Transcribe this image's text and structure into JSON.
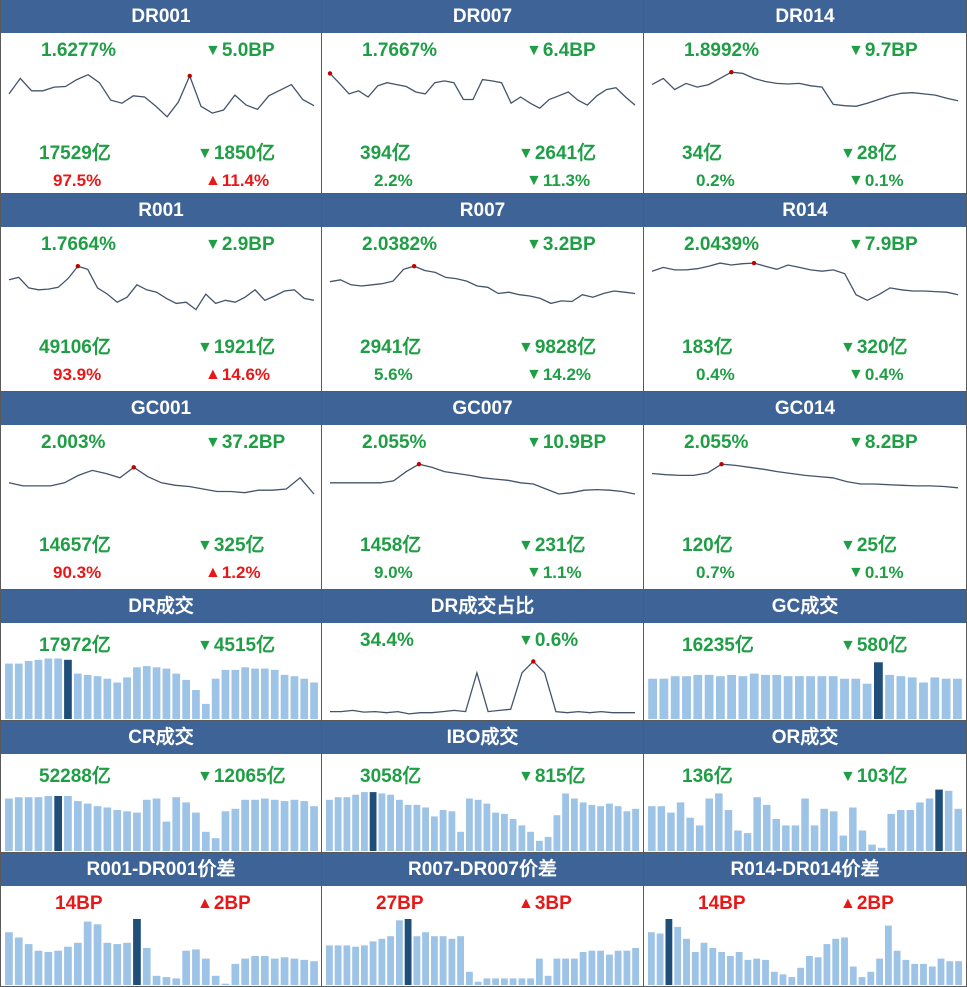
{
  "colors": {
    "header_bg": "#3e6396",
    "green": "#1f9e45",
    "red": "#e81818",
    "line": "#44546a",
    "bar": "#9dc3e6",
    "bar_highlight": "#1f4e79",
    "marker": "#c00000"
  },
  "panels": [
    {
      "id": "dr001",
      "title": "DR001",
      "kind": "line",
      "rate": "1.6277%",
      "rate_chg": "5.0BP",
      "rate_dir": "down",
      "vol": "17529亿",
      "vol_chg": "1850亿",
      "vol_dir": "down",
      "share": "97.5%",
      "share_chg": "11.4%",
      "share_dir": "up",
      "share_color": "red",
      "chart_data": {
        "type": "line",
        "values": [
          55,
          80,
          60,
          60,
          66,
          67,
          78,
          86,
          73,
          45,
          40,
          52,
          50,
          35,
          18,
          42,
          84,
          35,
          24,
          29,
          53,
          37,
          30,
          52,
          61,
          70,
          46,
          36
        ],
        "ylim": [
          0,
          100
        ],
        "peak_index": 16
      }
    },
    {
      "id": "dr007",
      "title": "DR007",
      "kind": "line",
      "rate": "1.7667%",
      "rate_chg": "6.4BP",
      "rate_dir": "down",
      "vol": "394亿",
      "vol_chg": "2641亿",
      "vol_dir": "down",
      "share": "2.2%",
      "share_chg": "11.3%",
      "share_dir": "down",
      "share_color": "green",
      "chart_data": {
        "type": "line",
        "values": [
          88,
          72,
          55,
          60,
          50,
          68,
          73,
          70,
          67,
          58,
          55,
          73,
          76,
          73,
          46,
          46,
          78,
          76,
          73,
          40,
          50,
          40,
          32,
          46,
          52,
          58,
          45,
          37,
          52,
          62,
          65,
          50,
          37
        ],
        "ylim": [
          0,
          100
        ],
        "peak_index": 0
      }
    },
    {
      "id": "dr014",
      "title": "DR014",
      "kind": "line",
      "rate": "1.8992%",
      "rate_chg": "9.7BP",
      "rate_dir": "down",
      "vol": "34亿",
      "vol_chg": "28亿",
      "vol_dir": "down",
      "share": "0.2%",
      "share_chg": "0.1%",
      "share_dir": "down",
      "share_color": "green",
      "chart_data": {
        "type": "line",
        "values": [
          70,
          80,
          62,
          72,
          66,
          70,
          80,
          90,
          88,
          80,
          75,
          72,
          71,
          72,
          68,
          66,
          38,
          36,
          35,
          40,
          46,
          52,
          56,
          57,
          55,
          53,
          48,
          44
        ],
        "ylim": [
          0,
          100
        ],
        "peak_index": 7
      }
    },
    {
      "id": "r001",
      "title": "R001",
      "kind": "line",
      "rate": "1.7664%",
      "rate_chg": "2.9BP",
      "rate_dir": "down",
      "vol": "49106亿",
      "vol_chg": "1921亿",
      "vol_dir": "down",
      "share": "93.9%",
      "share_chg": "14.6%",
      "share_dir": "up",
      "share_color": "red",
      "chart_data": {
        "type": "line",
        "values": [
          68,
          72,
          55,
          52,
          53,
          56,
          70,
          90,
          85,
          55,
          45,
          32,
          40,
          60,
          52,
          48,
          38,
          30,
          32,
          20,
          45,
          30,
          35,
          32,
          40,
          52,
          35,
          42,
          50,
          52,
          38,
          35
        ],
        "ylim": [
          0,
          100
        ],
        "peak_index": 7
      }
    },
    {
      "id": "r007",
      "title": "R007",
      "kind": "line",
      "rate": "2.0382%",
      "rate_chg": "3.2BP",
      "rate_dir": "down",
      "vol": "2941亿",
      "vol_chg": "9828亿",
      "vol_dir": "down",
      "share": "5.6%",
      "share_chg": "14.2%",
      "share_dir": "down",
      "share_color": "green",
      "chart_data": {
        "type": "line",
        "values": [
          65,
          68,
          60,
          58,
          60,
          62,
          66,
          85,
          90,
          83,
          80,
          72,
          70,
          66,
          58,
          56,
          46,
          48,
          44,
          42,
          38,
          30,
          34,
          33,
          44,
          40,
          46,
          50,
          48,
          46
        ],
        "ylim": [
          0,
          100
        ],
        "peak_index": 8
      }
    },
    {
      "id": "r014",
      "title": "R014",
      "kind": "line",
      "rate": "2.0439%",
      "rate_chg": "7.9BP",
      "rate_dir": "down",
      "vol": "183亿",
      "vol_chg": "320亿",
      "vol_dir": "down",
      "share": "0.4%",
      "share_chg": "0.4%",
      "share_dir": "down",
      "share_color": "green",
      "chart_data": {
        "type": "line",
        "values": [
          82,
          88,
          84,
          84,
          86,
          90,
          95,
          92,
          94,
          95,
          90,
          85,
          92,
          88,
          84,
          82,
          84,
          78,
          44,
          35,
          44,
          55,
          52,
          50,
          50,
          49,
          48,
          44
        ],
        "ylim": [
          0,
          100
        ],
        "peak_index": 9
      }
    },
    {
      "id": "gc001",
      "title": "GC001",
      "kind": "line",
      "rate": "2.003%",
      "rate_chg": "37.2BP",
      "rate_dir": "down",
      "vol": "14657亿",
      "vol_chg": "325亿",
      "vol_dir": "down",
      "share": "90.3%",
      "share_chg": "1.2%",
      "share_dir": "up",
      "share_color": "red",
      "chart_data": {
        "type": "line",
        "values": [
          60,
          55,
          55,
          55,
          60,
          72,
          80,
          75,
          68,
          85,
          70,
          60,
          56,
          54,
          50,
          46,
          46,
          44,
          48,
          48,
          50,
          68,
          42
        ],
        "ylim": [
          0,
          100
        ],
        "peak_index": 9
      }
    },
    {
      "id": "gc007",
      "title": "GC007",
      "kind": "line",
      "rate": "2.055%",
      "rate_chg": "10.9BP",
      "rate_dir": "down",
      "vol": "1458亿",
      "vol_chg": "231亿",
      "vol_dir": "down",
      "share": "9.0%",
      "share_chg": "1.1%",
      "share_dir": "down",
      "share_color": "green",
      "chart_data": {
        "type": "line",
        "values": [
          60,
          60,
          60,
          60,
          60,
          63,
          78,
          90,
          85,
          78,
          75,
          72,
          68,
          66,
          64,
          60,
          58,
          50,
          42,
          44,
          48,
          49,
          48,
          46,
          42
        ],
        "ylim": [
          0,
          100
        ],
        "peak_index": 7
      }
    },
    {
      "id": "gc014",
      "title": "GC014",
      "kind": "line",
      "rate": "2.055%",
      "rate_chg": "8.2BP",
      "rate_dir": "down",
      "vol": "120亿",
      "vol_chg": "25亿",
      "vol_dir": "down",
      "share": "0.7%",
      "share_chg": "0.1%",
      "share_dir": "down",
      "share_color": "green",
      "chart_data": {
        "type": "line",
        "values": [
          75,
          73,
          72,
          72,
          76,
          90,
          88,
          85,
          82,
          78,
          75,
          72,
          70,
          68,
          62,
          58,
          58,
          57,
          56,
          55,
          55,
          54,
          52
        ],
        "ylim": [
          0,
          100
        ],
        "peak_index": 5
      }
    },
    {
      "id": "dr_vol",
      "title": "DR成交",
      "kind": "bar",
      "rate": "17972亿",
      "rate_chg": "4515亿",
      "rate_dir": "down",
      "chart_data": {
        "type": "bar",
        "values": [
          88,
          88,
          92,
          94,
          96,
          96,
          94,
          72,
          70,
          68,
          64,
          58,
          66,
          82,
          84,
          82,
          80,
          72,
          62,
          46,
          24,
          64,
          78,
          78,
          82,
          80,
          80,
          78,
          70,
          68,
          64,
          58
        ],
        "ylim": [
          0,
          100
        ],
        "highlight_index": 6
      }
    },
    {
      "id": "dr_share",
      "title": "DR成交占比",
      "kind": "line",
      "rate": "34.4%",
      "rate_chg": "0.6%",
      "rate_dir": "down",
      "chart_data": {
        "type": "line",
        "values": [
          6,
          6,
          8,
          5,
          6,
          4,
          6,
          2,
          4,
          4,
          6,
          8,
          6,
          74,
          6,
          8,
          10,
          74,
          94,
          74,
          6,
          4,
          6,
          4,
          6,
          4,
          4,
          4
        ],
        "ylim": [
          0,
          100
        ],
        "peak_index": 18
      }
    },
    {
      "id": "gc_vol",
      "title": "GC成交",
      "kind": "bar",
      "rate": "16235亿",
      "rate_chg": "580亿",
      "rate_dir": "down",
      "chart_data": {
        "type": "bar",
        "values": [
          64,
          64,
          68,
          68,
          70,
          70,
          68,
          70,
          68,
          72,
          70,
          70,
          68,
          68,
          68,
          68,
          68,
          64,
          64,
          56,
          90,
          70,
          68,
          66,
          58,
          66,
          64,
          64
        ],
        "ylim": [
          0,
          100
        ],
        "highlight_index": 20
      }
    },
    {
      "id": "cr_vol",
      "title": "CR成交",
      "kind": "bar",
      "rate": "52288亿",
      "rate_chg": "12065亿",
      "rate_dir": "down",
      "chart_data": {
        "type": "bar",
        "values": [
          82,
          84,
          84,
          84,
          86,
          86,
          86,
          78,
          74,
          70,
          68,
          64,
          62,
          60,
          80,
          82,
          46,
          84,
          76,
          60,
          30,
          20,
          62,
          66,
          80,
          80,
          82,
          80,
          78,
          80,
          78,
          70
        ],
        "ylim": [
          0,
          100
        ],
        "highlight_index": 5
      }
    },
    {
      "id": "ibo_vol",
      "title": "IBO成交",
      "kind": "bar",
      "rate": "3058亿",
      "rate_chg": "815亿",
      "rate_dir": "down",
      "chart_data": {
        "type": "bar",
        "values": [
          80,
          84,
          84,
          88,
          92,
          92,
          90,
          88,
          80,
          72,
          72,
          68,
          54,
          64,
          62,
          30,
          82,
          80,
          74,
          60,
          58,
          50,
          40,
          30,
          16,
          22,
          56,
          90,
          82,
          76,
          72,
          70,
          74,
          70,
          62,
          66
        ],
        "ylim": [
          0,
          100
        ],
        "highlight_index": 5
      }
    },
    {
      "id": "or_vol",
      "title": "OR成交",
      "kind": "bar",
      "rate": "136亿",
      "rate_chg": "103亿",
      "rate_dir": "down",
      "chart_data": {
        "type": "bar",
        "values": [
          70,
          70,
          60,
          76,
          52,
          40,
          82,
          90,
          64,
          32,
          28,
          84,
          72,
          50,
          40,
          40,
          82,
          40,
          66,
          62,
          24,
          68,
          32,
          10,
          5,
          58,
          64,
          64,
          76,
          82,
          96,
          94,
          66
        ],
        "ylim": [
          0,
          100
        ],
        "highlight_index": 30
      }
    },
    {
      "id": "spread1",
      "title": "R001-DR001价差",
      "kind": "bar",
      "rate": "14BP",
      "rate_chg": "2BP",
      "rate_dir": "up",
      "chart_data": {
        "type": "bar",
        "values": [
          80,
          72,
          62,
          52,
          50,
          52,
          58,
          64,
          96,
          92,
          64,
          62,
          64,
          100,
          56,
          14,
          12,
          10,
          52,
          54,
          40,
          14,
          2,
          32,
          40,
          44,
          44,
          40,
          42,
          40,
          38,
          36
        ],
        "ylim": [
          0,
          100
        ],
        "highlight_index": 13
      }
    },
    {
      "id": "spread7",
      "title": "R007-DR007价差",
      "kind": "bar",
      "rate": "27BP",
      "rate_chg": "3BP",
      "rate_dir": "up",
      "chart_data": {
        "type": "bar",
        "values": [
          60,
          60,
          60,
          58,
          60,
          66,
          70,
          74,
          98,
          100,
          74,
          80,
          74,
          74,
          70,
          74,
          20,
          5,
          10,
          10,
          10,
          10,
          10,
          10,
          40,
          14,
          40,
          40,
          40,
          50,
          52,
          52,
          46,
          52,
          52,
          56
        ],
        "ylim": [
          0,
          100
        ],
        "highlight_index": 9
      }
    },
    {
      "id": "spread14",
      "title": "R014-DR014价差",
      "kind": "bar",
      "rate": "14BP",
      "rate_chg": "2BP",
      "rate_dir": "up",
      "chart_data": {
        "type": "bar",
        "values": [
          80,
          78,
          100,
          88,
          70,
          50,
          64,
          56,
          50,
          44,
          50,
          38,
          40,
          38,
          20,
          16,
          12,
          26,
          44,
          42,
          62,
          70,
          72,
          28,
          12,
          20,
          40,
          90,
          52,
          38,
          32,
          32,
          28,
          40,
          36,
          36
        ],
        "ylim": [
          0,
          100
        ],
        "highlight_index": 2
      }
    }
  ]
}
